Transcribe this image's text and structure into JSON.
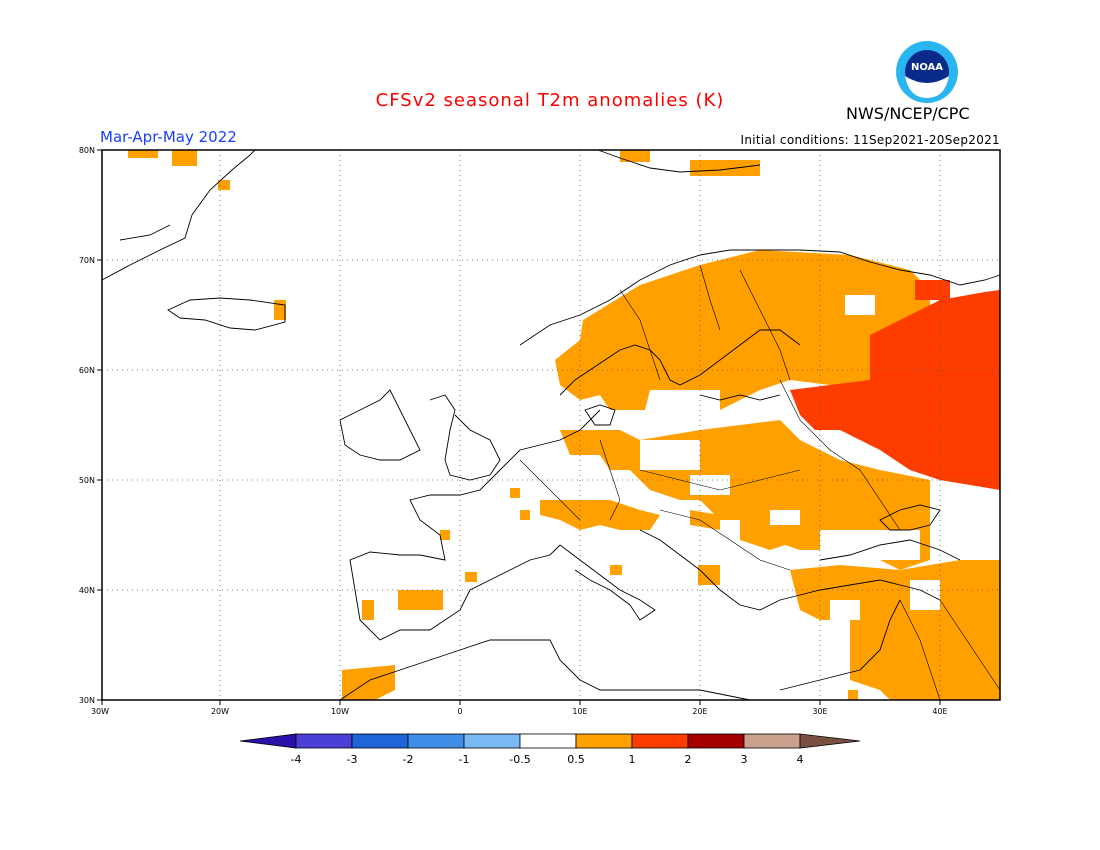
{
  "header": {
    "title": "CFSv2 seasonal T2m anomalies (K)",
    "agency": "NWS/NCEP/CPC",
    "period": "Mar-Apr-May 2022",
    "initial_conditions": "Initial conditions: 11Sep2021-20Sep2021",
    "logo_text": "NOAA"
  },
  "map": {
    "extent": {
      "lon": [
        -30,
        45
      ],
      "lat": [
        30,
        80
      ]
    },
    "lon_ticks": [
      "30W",
      "20W",
      "10W",
      "0",
      "10E",
      "20E",
      "30E",
      "40E"
    ],
    "lat_ticks": [
      "80N",
      "70N",
      "60N",
      "50N",
      "40N",
      "30N"
    ]
  },
  "colorbar": {
    "labels": [
      "-4",
      "-3",
      "-2",
      "-1",
      "-0.5",
      "0.5",
      "1",
      "2",
      "3",
      "4"
    ],
    "colors": [
      "#2a0fa8",
      "#4b3fd6",
      "#1f64d8",
      "#3f8ee8",
      "#7ab8f3",
      "#ffffff",
      "#ffa000",
      "#ff3c00",
      "#a50000",
      "#c8a08c",
      "#7a5040"
    ]
  }
}
